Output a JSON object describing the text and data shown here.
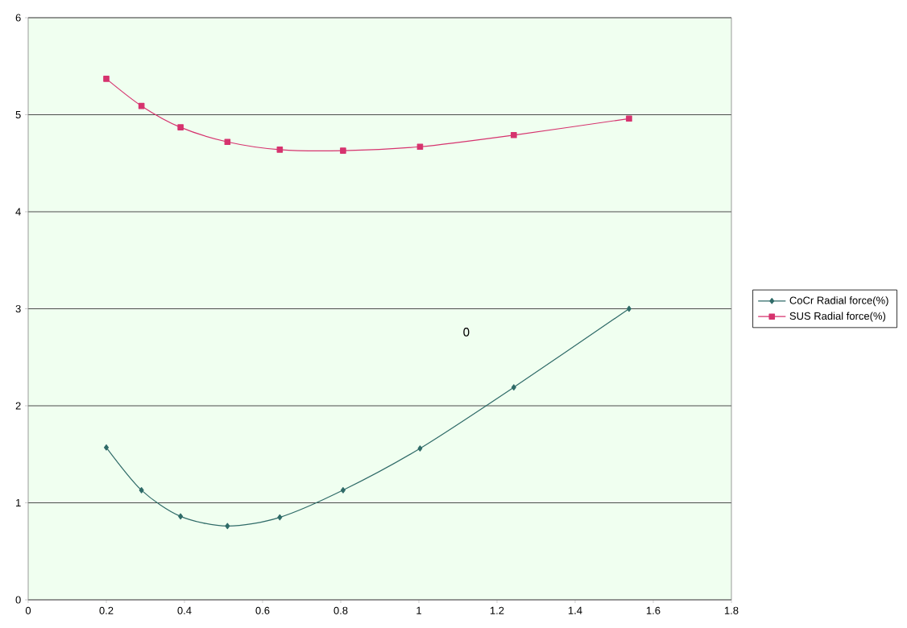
{
  "chart_data": {
    "type": "line",
    "x": [
      0.2,
      0.29,
      0.39,
      0.51,
      0.644,
      0.806,
      1.003,
      1.243,
      1.538
    ],
    "series": [
      {
        "name": "CoCr Radial force(%)",
        "color": "#2f6b68",
        "marker": "diamond",
        "values": [
          1.57,
          1.13,
          0.86,
          0.76,
          0.85,
          1.13,
          1.56,
          2.19,
          3.0
        ]
      },
      {
        "name": "SUS Radial force(%)",
        "color": "#d6336e",
        "marker": "square",
        "values": [
          5.37,
          5.09,
          4.87,
          4.72,
          4.64,
          4.63,
          4.67,
          4.79,
          4.96
        ]
      }
    ],
    "xlim": [
      0,
      1.8
    ],
    "xticks": [
      0,
      0.2,
      0.4,
      0.6,
      0.8,
      1,
      1.2,
      1.4,
      1.6,
      1.8
    ],
    "ylim": [
      0,
      6
    ],
    "yticks": [
      0,
      1,
      2,
      3,
      4,
      5,
      6
    ],
    "grid": "y",
    "legend": "right",
    "line_style": "solid",
    "annotations": [
      "0"
    ]
  }
}
